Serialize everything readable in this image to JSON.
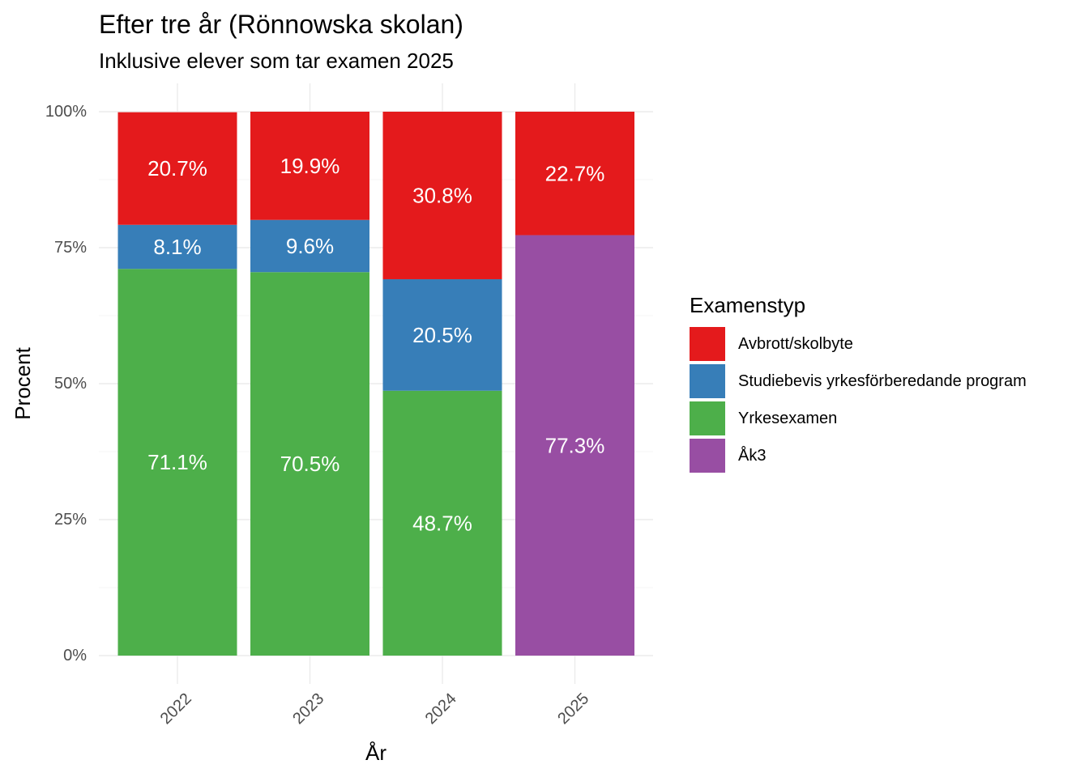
{
  "chart_data": {
    "type": "bar",
    "stacked": true,
    "title": "Efter tre år (Rönnowska skolan)",
    "subtitle": "Inklusive elever som tar examen 2025",
    "xlabel": "År",
    "ylabel": "Procent",
    "categories": [
      "2022",
      "2023",
      "2024",
      "2025"
    ],
    "ylim": [
      0,
      100
    ],
    "y_ticks": [
      0,
      25,
      50,
      75,
      100
    ],
    "y_tick_labels": [
      "0%",
      "25%",
      "50%",
      "75%",
      "100%"
    ],
    "grid": true,
    "legend": {
      "title": "Examenstyp",
      "position": "right"
    },
    "series": [
      {
        "name": "Avbrott/skolbyte",
        "color": "#E41A1C",
        "values": [
          20.7,
          19.9,
          30.8,
          22.7
        ],
        "labels": [
          "20.7%",
          "19.9%",
          "30.8%",
          "22.7%"
        ]
      },
      {
        "name": "Studiebevis yrkesförberedande program",
        "color": "#377EB8",
        "values": [
          8.1,
          9.6,
          20.5,
          0
        ],
        "labels": [
          "8.1%",
          "9.6%",
          "20.5%",
          ""
        ]
      },
      {
        "name": "Yrkesexamen",
        "color": "#4DAF4A",
        "values": [
          71.1,
          70.5,
          48.7,
          0
        ],
        "labels": [
          "71.1%",
          "70.5%",
          "48.7%",
          ""
        ]
      },
      {
        "name": "Åk3",
        "color": "#984EA3",
        "values": [
          0,
          0,
          0,
          77.3
        ],
        "labels": [
          "",
          "",
          "",
          "77.3%"
        ]
      }
    ]
  }
}
